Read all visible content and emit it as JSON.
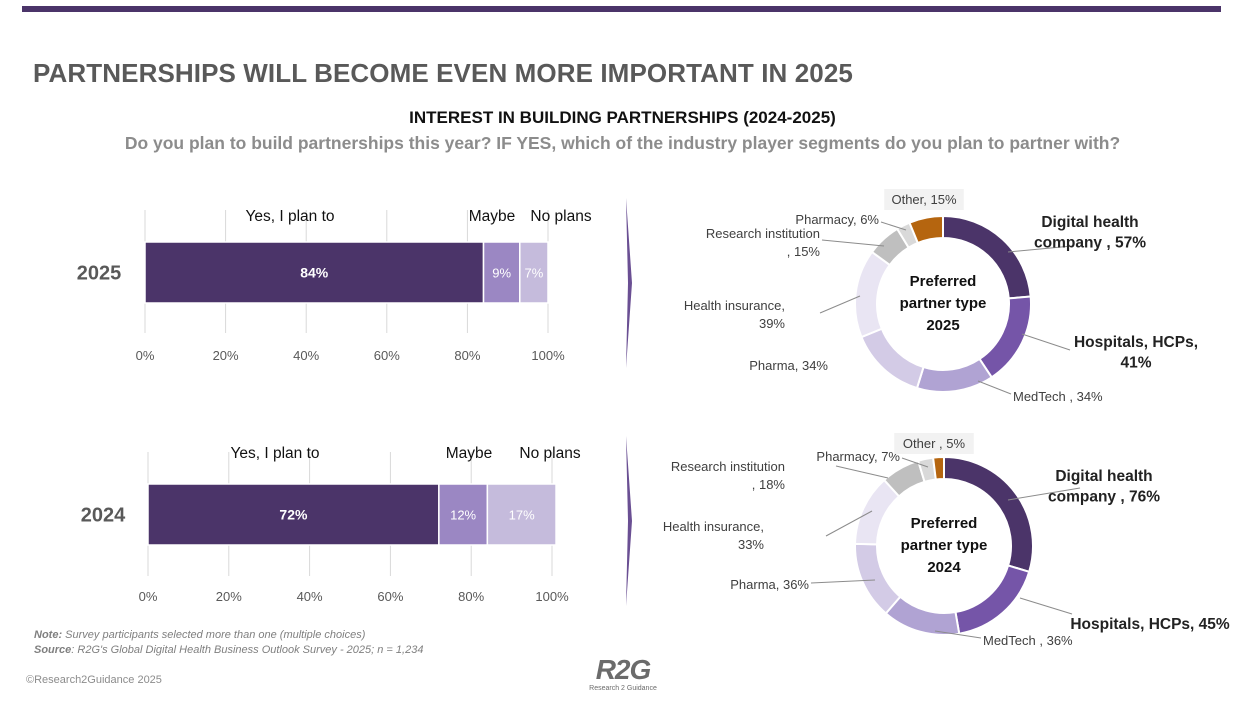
{
  "header": {
    "title": "PARTNERSHIPS WILL BECOME EVEN MORE IMPORTANT IN 2025",
    "subtitle": "INTEREST IN BUILDING PARTNERSHIPS (2024-2025)",
    "question": "Do you plan to build partnerships this year?  IF YES, which of the industry player segments do you plan to partner with?"
  },
  "chart_data": [
    {
      "type": "bar",
      "orientation": "horizontal-stacked",
      "category": "2025",
      "series": [
        {
          "name": "Yes, I plan to",
          "value": 84,
          "label": "84%",
          "color": "#4b3469"
        },
        {
          "name": "Maybe",
          "value": 9,
          "label": "9%",
          "color": "#9b87c3"
        },
        {
          "name": "No plans",
          "value": 7,
          "label": "7%",
          "color": "#c5bbdc"
        }
      ],
      "xticks": [
        "0%",
        "20%",
        "40%",
        "60%",
        "80%",
        "100%"
      ],
      "xlim": [
        0,
        100
      ]
    },
    {
      "type": "bar",
      "orientation": "horizontal-stacked",
      "category": "2024",
      "series": [
        {
          "name": "Yes, I plan to",
          "value": 72,
          "label": "72%",
          "color": "#4b3469"
        },
        {
          "name": "Maybe",
          "value": 12,
          "label": "12%",
          "color": "#9b87c3"
        },
        {
          "name": "No plans",
          "value": 17,
          "label": "17%",
          "color": "#c5bbdc"
        }
      ],
      "xticks": [
        "0%",
        "20%",
        "40%",
        "60%",
        "80%",
        "100%"
      ],
      "xlim": [
        0,
        100
      ]
    },
    {
      "type": "pie",
      "style": "donut",
      "center_label": [
        "Preferred",
        "partner type",
        "2025"
      ],
      "slices": [
        {
          "name": "Digital health company",
          "value": 57,
          "label": [
            "Digital health",
            "company , 57%"
          ],
          "bold": true,
          "color": "#4b3469"
        },
        {
          "name": "Hospitals, HCPs",
          "value": 41,
          "label": [
            "Hospitals, HCPs,",
            "41%"
          ],
          "bold": true,
          "color": "#7555a8"
        },
        {
          "name": "MedTech",
          "value": 34,
          "label": [
            "MedTech , 34%"
          ],
          "bold": false,
          "color": "#b0a3d3"
        },
        {
          "name": "Pharma",
          "value": 34,
          "label": [
            "Pharma, 34%"
          ],
          "bold": false,
          "color": "#d3cbe6"
        },
        {
          "name": "Health insurance",
          "value": 39,
          "label": [
            "Health insurance,",
            "39%"
          ],
          "bold": false,
          "color": "#e9e5f3"
        },
        {
          "name": "Research institution",
          "value": 15,
          "label": [
            "Research institution",
            ", 15%"
          ],
          "bold": false,
          "color": "#bfbfbf"
        },
        {
          "name": "Pharmacy",
          "value": 6,
          "label": [
            "Pharmacy, 6%"
          ],
          "bold": false,
          "color": "#d9d9d9"
        },
        {
          "name": "Other",
          "value": 15,
          "label": [
            "Other, 15%"
          ],
          "bold": false,
          "color": "#b5650f"
        }
      ]
    },
    {
      "type": "pie",
      "style": "donut",
      "center_label": [
        "Preferred",
        "partner type",
        "2024"
      ],
      "slices": [
        {
          "name": "Digital health company",
          "value": 76,
          "label": [
            "Digital health",
            "company , 76%"
          ],
          "bold": true,
          "color": "#4b3469"
        },
        {
          "name": "Hospitals, HCPs",
          "value": 45,
          "label": [
            "Hospitals, HCPs, 45%"
          ],
          "bold": true,
          "color": "#7555a8"
        },
        {
          "name": "MedTech",
          "value": 36,
          "label": [
            "MedTech , 36%"
          ],
          "bold": false,
          "color": "#b0a3d3"
        },
        {
          "name": "Pharma",
          "value": 36,
          "label": [
            "Pharma, 36%"
          ],
          "bold": false,
          "color": "#d3cbe6"
        },
        {
          "name": "Health insurance",
          "value": 33,
          "label": [
            "Health insurance,",
            "33%"
          ],
          "bold": false,
          "color": "#e9e5f3"
        },
        {
          "name": "Research institution",
          "value": 18,
          "label": [
            "Research institution",
            ", 18%"
          ],
          "bold": false,
          "color": "#bfbfbf"
        },
        {
          "name": "Pharmacy",
          "value": 7,
          "label": [
            "Pharmacy, 7%"
          ],
          "bold": false,
          "color": "#d9d9d9"
        },
        {
          "name": "Other",
          "value": 5,
          "label": [
            "Other , 5%"
          ],
          "bold": false,
          "color": "#b5650f"
        }
      ]
    }
  ],
  "footer": {
    "note_label": "Note:",
    "note_text": " Survey participants selected more than one (multiple choices)",
    "source_label": "Source",
    "source_text": ":  R2G's Global Digital Health Business Outlook Survey - 2025; n = 1,234",
    "copyright": "©Research2Guidance 2025",
    "logo_text": "R2G",
    "logo_sub": "Research 2 Guidance"
  }
}
